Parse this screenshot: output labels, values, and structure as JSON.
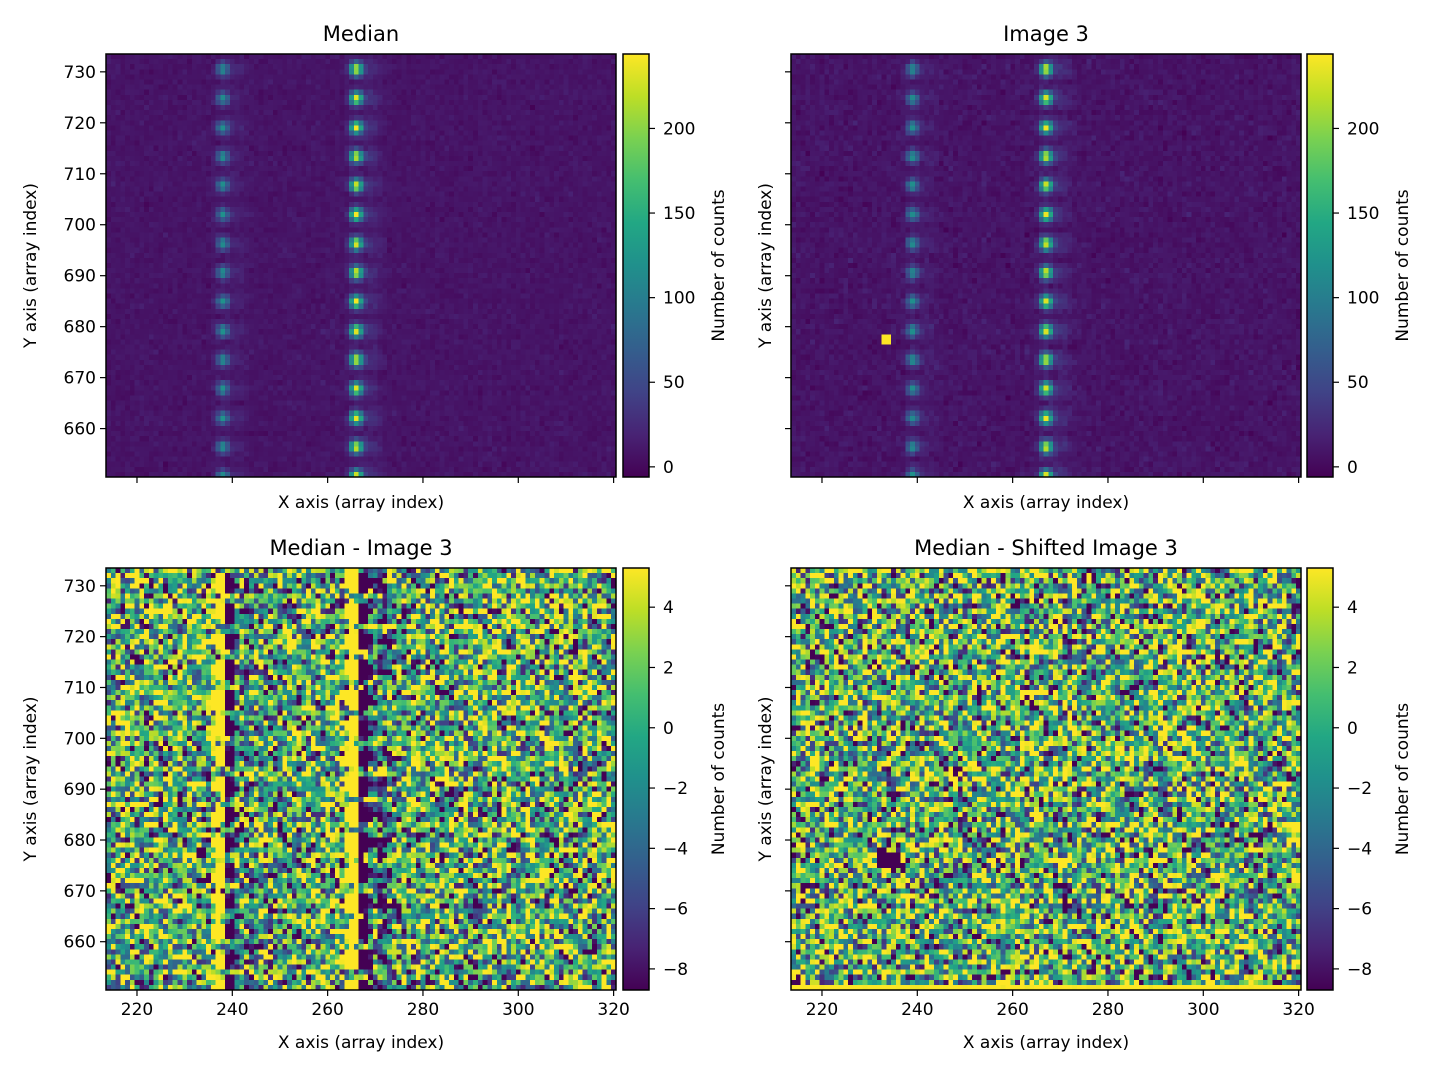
{
  "chart_data": [
    {
      "type": "heatmap",
      "title": "Median",
      "xlabel": "X axis (array index)",
      "ylabel": "Y axis (array index)",
      "xlim": [
        213.5,
        320.5
      ],
      "ylim": [
        650.5,
        733.5
      ],
      "xticks": [
        220,
        240,
        260,
        280,
        300,
        320
      ],
      "xtick_labels_shown": false,
      "yticks": [
        660,
        670,
        680,
        690,
        700,
        710,
        720,
        730
      ],
      "ytick_labels_shown": true,
      "colormap": "viridis",
      "colorbar": {
        "label": "Number of counts",
        "range": [
          -6,
          244
        ],
        "ticks": [
          0,
          50,
          100,
          150,
          200
        ]
      },
      "content": {
        "description": "Two vertical columns of periodic bright spots on a low-count background",
        "background_level": 8,
        "columns": [
          {
            "x_center": 238,
            "peak": 110
          },
          {
            "x_center": 266,
            "peak": 225
          }
        ],
        "spot_period_rows": 5.7,
        "first_spot_row": 730.5
      }
    },
    {
      "type": "heatmap",
      "title": "Image 3",
      "xlabel": "X axis (array index)",
      "ylabel": "Y axis (array index)",
      "xlim": [
        213.5,
        320.5
      ],
      "ylim": [
        650.5,
        733.5
      ],
      "xticks": [
        220,
        240,
        260,
        280,
        300,
        320
      ],
      "xtick_labels_shown": false,
      "yticks": [
        660,
        670,
        680,
        690,
        700,
        710,
        720,
        730
      ],
      "ytick_labels_shown": false,
      "colormap": "viridis",
      "colorbar": {
        "label": "Number of counts",
        "range": [
          -6,
          244
        ],
        "ticks": [
          0,
          50,
          100,
          150,
          200
        ]
      },
      "content": {
        "description": "Same spot columns as Median, shifted by about +1 column; hot pixel block",
        "shift_x": 1,
        "hot_pixel": {
          "x": [
            233,
            234
          ],
          "y": [
            677,
            678
          ],
          "value": 244
        }
      }
    },
    {
      "type": "heatmap",
      "title": "Median - Image 3",
      "xlabel": "X axis (array index)",
      "ylabel": "Y axis (array index)",
      "xlim": [
        213.5,
        320.5
      ],
      "ylim": [
        650.5,
        733.5
      ],
      "xticks": [
        220,
        240,
        260,
        280,
        300,
        320
      ],
      "xtick_labels_shown": true,
      "yticks": [
        660,
        670,
        680,
        690,
        700,
        710,
        720,
        730
      ],
      "ytick_labels_shown": true,
      "colormap": "viridis",
      "colorbar": {
        "label": "Number of counts",
        "range": [
          -8.7,
          5.3
        ],
        "ticks": [
          -8,
          -6,
          -4,
          -2,
          0,
          2,
          4
        ]
      },
      "content": {
        "description": "Residual noise; positive (yellow) on left edge and negative (dark) on right edge of each spot column"
      }
    },
    {
      "type": "heatmap",
      "title": "Median - Shifted Image 3",
      "xlabel": "X axis (array index)",
      "ylabel": "Y axis (array index)",
      "xlim": [
        213.5,
        320.5
      ],
      "ylim": [
        650.5,
        733.5
      ],
      "xticks": [
        220,
        240,
        260,
        280,
        300,
        320
      ],
      "xtick_labels_shown": true,
      "yticks": [
        660,
        670,
        680,
        690,
        700,
        710,
        720,
        730
      ],
      "ytick_labels_shown": false,
      "colormap": "viridis",
      "colorbar": {
        "label": "Number of counts",
        "range": [
          -8.7,
          5.3
        ],
        "ticks": [
          -8,
          -6,
          -4,
          -2,
          0,
          2,
          4
        ]
      },
      "content": {
        "description": "Reduced residual after shift; mixed residuals along spot columns, dark block from hot pixel, bright bottom row edge artifact",
        "dark_block": {
          "x": [
            232,
            236
          ],
          "y": [
            675,
            677
          ]
        }
      }
    }
  ],
  "tick_format": {
    "minus_sign": "−"
  }
}
